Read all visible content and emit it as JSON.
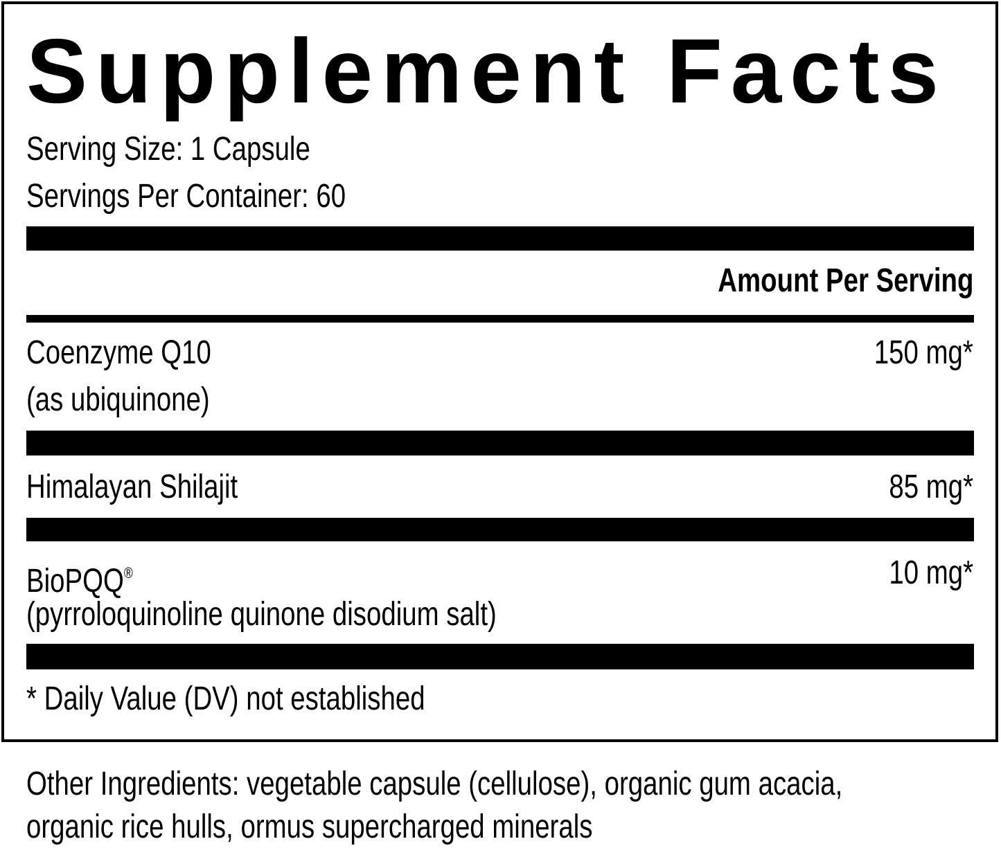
{
  "title": "Supplement Facts",
  "serving_size": "Serving Size: 1 Capsule",
  "servings_per_container": "Servings Per Container: 60",
  "amount_header": "Amount Per Serving",
  "ingredients": [
    {
      "name": "Coenzyme Q10",
      "detail": "(as ubiquinone)",
      "amount": "150 mg*"
    },
    {
      "name": "Himalayan Shilajit",
      "amount": "85 mg*"
    },
    {
      "name": "BioPQQ",
      "mark": "®",
      "detail": "(pyrroloquinoline quinone disodium salt)",
      "amount": "10 mg*"
    }
  ],
  "footnote": "* Daily Value (DV) not established",
  "other_ingredients": [
    "Other Ingredients: vegetable capsule (cellulose), organic gum acacia,",
    "organic rice hulls, ormus supercharged minerals"
  ]
}
